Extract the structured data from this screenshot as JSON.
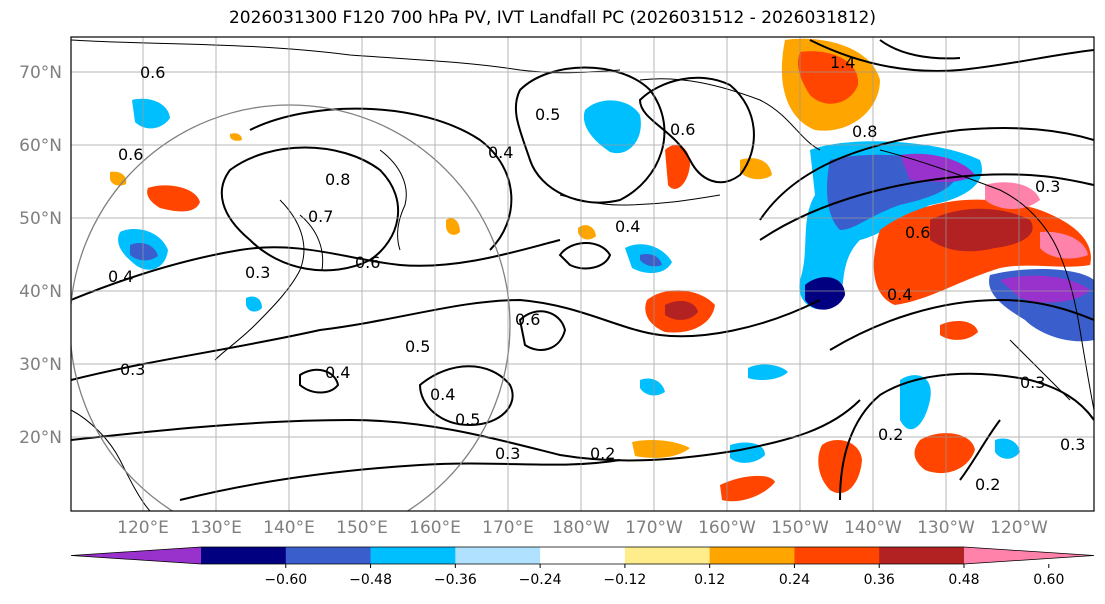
{
  "title": "2026031300 F120 700 hPa PV, IVT Landfall PC (2026031512 - 2026031812)",
  "lat_labels": [
    "70°N",
    "60°N",
    "50°N",
    "40°N",
    "30°N",
    "20°N"
  ],
  "lon_labels": [
    "120°E",
    "130°E",
    "140°E",
    "150°E",
    "160°E",
    "170°E",
    "180°W",
    "170°W",
    "160°W",
    "150°W",
    "140°W",
    "130°W",
    "120°W"
  ],
  "contour_labels": [
    "1.4",
    "0.8",
    "0.3",
    "0.6",
    "0.4",
    "0.5",
    "0.3",
    "0.2",
    "0.3",
    "0.3",
    "0.4",
    "0.6",
    "0.6",
    "0.8",
    "0.7",
    "0.4",
    "0.3",
    "0.6",
    "0.5",
    "0.4",
    "0.4",
    "0.5",
    "0.6",
    "0.4",
    "0.6",
    "0.2",
    "0.2",
    "0.3"
  ],
  "colorbar": {
    "colors": [
      "#9932cc",
      "#000080",
      "#3a5fcd",
      "#00bfff",
      "#b0e2ff",
      "#ffffff",
      "#ffec8b",
      "#ffa500",
      "#ff4500",
      "#b22222",
      "#ff82ab"
    ],
    "tick_labels": [
      "−0.60",
      "−0.48",
      "−0.36",
      "−0.24",
      "−0.12",
      "0.12",
      "0.24",
      "0.36",
      "0.48",
      "0.60"
    ]
  }
}
